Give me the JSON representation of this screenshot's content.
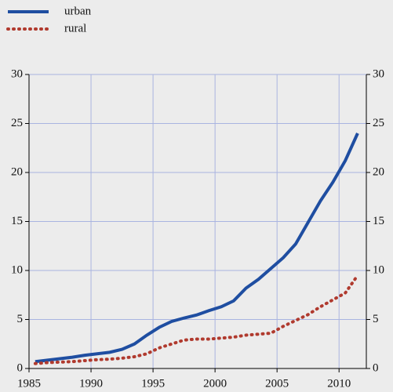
{
  "chart_data": {
    "type": "line",
    "x": [
      1985.5,
      1986.5,
      1987.5,
      1988.5,
      1989.5,
      1990.5,
      1991.5,
      1992.5,
      1993.5,
      1994.5,
      1995.5,
      1996.5,
      1997.5,
      1998.5,
      1999.5,
      2000.5,
      2001.5,
      2002.5,
      2003.5,
      2004.5,
      2005.5,
      2006.5,
      2007.5,
      2008.5,
      2009.5,
      2010.5,
      2011.5
    ],
    "series": [
      {
        "name": "urban",
        "color": "#1f4ea1",
        "style": "solid",
        "values": [
          0.7,
          0.85,
          1.0,
          1.15,
          1.35,
          1.5,
          1.65,
          1.95,
          2.5,
          3.4,
          4.2,
          4.8,
          5.15,
          5.45,
          5.9,
          6.3,
          6.9,
          8.2,
          9.1,
          10.2,
          11.3,
          12.7,
          14.9,
          17.1,
          19.0,
          21.2,
          24.0
        ]
      },
      {
        "name": "rural",
        "color": "#b03a2e",
        "style": "dotted",
        "values": [
          0.5,
          0.6,
          0.65,
          0.7,
          0.8,
          0.9,
          0.95,
          1.05,
          1.2,
          1.5,
          2.1,
          2.5,
          2.9,
          3.0,
          3.0,
          3.1,
          3.2,
          3.4,
          3.5,
          3.6,
          4.3,
          4.9,
          5.5,
          6.3,
          7.0,
          7.7,
          9.5
        ]
      }
    ],
    "xlim": [
      1985,
      2012.2
    ],
    "xticks": [
      1985,
      1990,
      1995,
      2000,
      2005,
      2010
    ],
    "ylim": [
      0,
      30
    ],
    "yticks": [
      0,
      5,
      10,
      15,
      20,
      25,
      30
    ],
    "grid": true,
    "legend": "top-left"
  }
}
